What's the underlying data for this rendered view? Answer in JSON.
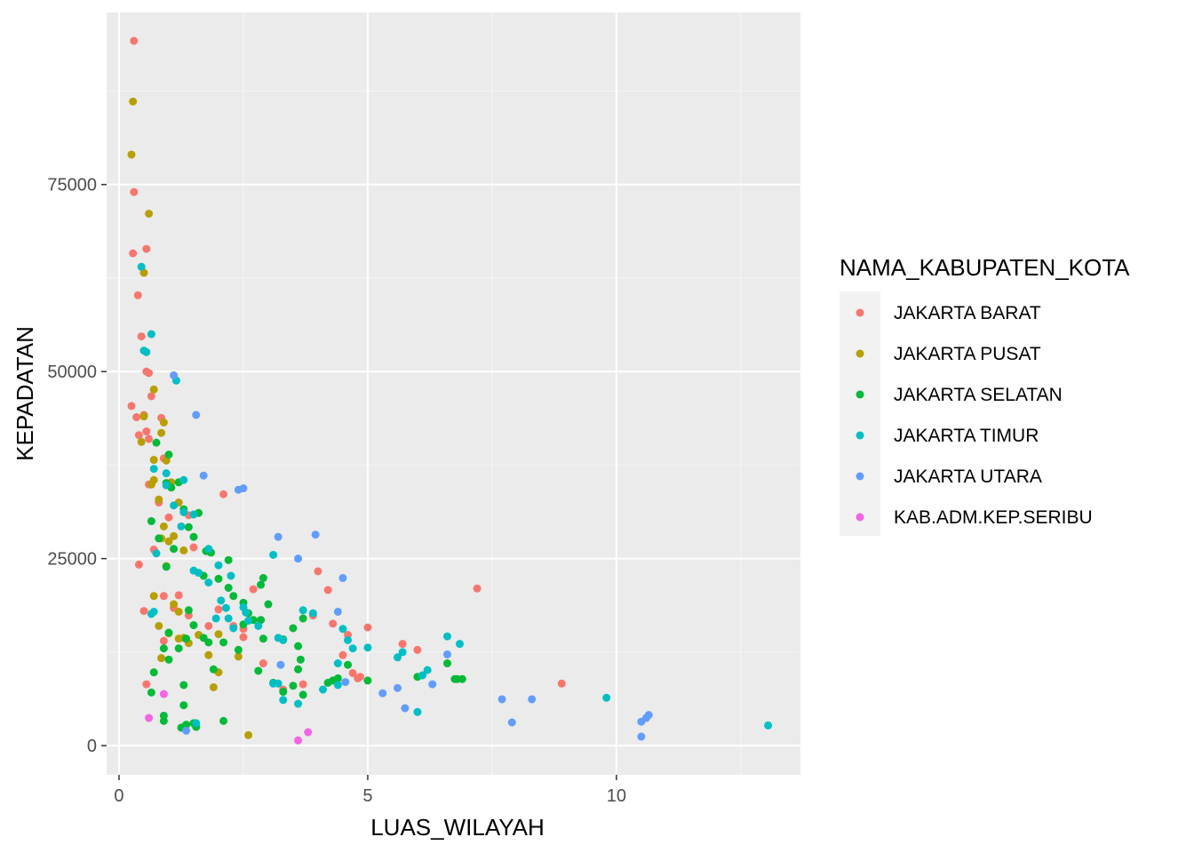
{
  "chart_data": {
    "type": "scatter",
    "xlabel": "LUAS_WILAYAH",
    "ylabel": "KEPADATAN",
    "xlim": [
      -0.25,
      13.7
    ],
    "ylim": [
      -3900,
      98000
    ],
    "x_ticks": [
      0,
      5,
      10
    ],
    "x_tick_labels": [
      "0",
      "5",
      "10"
    ],
    "y_ticks": [
      0,
      25000,
      50000,
      75000
    ],
    "y_tick_labels": [
      "0",
      "25000",
      "50000",
      "75000"
    ],
    "grid": true,
    "legend": {
      "title": "NAMA_KABUPATEN_KOTA",
      "position": "right"
    },
    "series": [
      {
        "name": "JAKARTA BARAT",
        "color": "#F8766D",
        "points": [
          [
            0.3,
            94200
          ],
          [
            0.3,
            74000
          ],
          [
            0.28,
            65800
          ],
          [
            0.55,
            66400
          ],
          [
            0.38,
            60200
          ],
          [
            0.45,
            54700
          ],
          [
            0.55,
            50000
          ],
          [
            0.6,
            49800
          ],
          [
            0.25,
            45400
          ],
          [
            0.35,
            43900
          ],
          [
            0.65,
            46700
          ],
          [
            0.5,
            44200
          ],
          [
            0.55,
            42000
          ],
          [
            0.4,
            41500
          ],
          [
            0.6,
            41000
          ],
          [
            0.85,
            43800
          ],
          [
            0.9,
            38400
          ],
          [
            0.6,
            34900
          ],
          [
            0.8,
            32500
          ],
          [
            1.0,
            30500
          ],
          [
            0.7,
            26200
          ],
          [
            0.4,
            24200
          ],
          [
            1.4,
            30800
          ],
          [
            2.1,
            33600
          ],
          [
            1.5,
            26500
          ],
          [
            1.2,
            20100
          ],
          [
            0.9,
            20000
          ],
          [
            1.1,
            18400
          ],
          [
            0.5,
            18000
          ],
          [
            0.9,
            14000
          ],
          [
            1.4,
            17400
          ],
          [
            1.8,
            16000
          ],
          [
            2.0,
            18200
          ],
          [
            2.3,
            16000
          ],
          [
            2.5,
            14500
          ],
          [
            2.7,
            20900
          ],
          [
            2.9,
            11000
          ],
          [
            3.3,
            7500
          ],
          [
            3.7,
            8200
          ],
          [
            3.9,
            17400
          ],
          [
            4.0,
            23300
          ],
          [
            4.2,
            20800
          ],
          [
            4.3,
            16300
          ],
          [
            4.6,
            14800
          ],
          [
            4.7,
            9700
          ],
          [
            4.8,
            9000
          ],
          [
            4.85,
            9200
          ],
          [
            5.0,
            15800
          ],
          [
            5.7,
            13600
          ],
          [
            6.0,
            12800
          ],
          [
            7.2,
            21000
          ],
          [
            8.9,
            8300
          ],
          [
            0.55,
            8200
          ],
          [
            2.5,
            15600
          ],
          [
            4.5,
            12100
          ]
        ]
      },
      {
        "name": "JAKARTA PUSAT",
        "color": "#B79F00",
        "points": [
          [
            0.28,
            86100
          ],
          [
            0.25,
            79000
          ],
          [
            0.6,
            71100
          ],
          [
            0.5,
            63200
          ],
          [
            0.7,
            47600
          ],
          [
            0.45,
            40600
          ],
          [
            0.9,
            43200
          ],
          [
            0.5,
            44000
          ],
          [
            0.85,
            41800
          ],
          [
            0.7,
            38200
          ],
          [
            0.95,
            38100
          ],
          [
            1.05,
            35200
          ],
          [
            0.7,
            35500
          ],
          [
            0.65,
            34900
          ],
          [
            0.8,
            32900
          ],
          [
            1.2,
            32500
          ],
          [
            1.0,
            27300
          ],
          [
            1.1,
            28000
          ],
          [
            0.85,
            27700
          ],
          [
            1.3,
            26100
          ],
          [
            0.95,
            24000
          ],
          [
            0.7,
            20000
          ],
          [
            1.2,
            17900
          ],
          [
            1.2,
            14300
          ],
          [
            1.4,
            13700
          ],
          [
            1.8,
            12100
          ],
          [
            2.0,
            9800
          ],
          [
            1.9,
            7800
          ],
          [
            2.0,
            14900
          ],
          [
            1.6,
            14800
          ],
          [
            2.4,
            11900
          ],
          [
            2.6,
            1400
          ],
          [
            0.85,
            11700
          ],
          [
            1.0,
            15000
          ],
          [
            0.8,
            16000
          ],
          [
            1.1,
            18900
          ],
          [
            1.3,
            14400
          ],
          [
            0.9,
            29300
          ]
        ]
      },
      {
        "name": "JAKARTA SELATAN",
        "color": "#00BA38",
        "points": [
          [
            0.75,
            40500
          ],
          [
            1.0,
            38900
          ],
          [
            0.95,
            35100
          ],
          [
            1.2,
            35200
          ],
          [
            1.05,
            34500
          ],
          [
            1.3,
            31600
          ],
          [
            1.6,
            31100
          ],
          [
            1.5,
            27900
          ],
          [
            0.8,
            27700
          ],
          [
            1.1,
            26300
          ],
          [
            1.75,
            26000
          ],
          [
            0.95,
            23900
          ],
          [
            0.65,
            30000
          ],
          [
            1.4,
            29200
          ],
          [
            1.85,
            25800
          ],
          [
            2.2,
            24800
          ],
          [
            2.0,
            22300
          ],
          [
            2.2,
            21100
          ],
          [
            2.3,
            20000
          ],
          [
            2.5,
            19100
          ],
          [
            2.6,
            17700
          ],
          [
            2.85,
            21500
          ],
          [
            3.0,
            18900
          ],
          [
            2.9,
            22400
          ],
          [
            2.7,
            16800
          ],
          [
            2.85,
            16800
          ],
          [
            2.9,
            14300
          ],
          [
            3.5,
            15700
          ],
          [
            3.7,
            17000
          ],
          [
            3.6,
            13300
          ],
          [
            3.65,
            11500
          ],
          [
            3.6,
            10200
          ],
          [
            3.5,
            8000
          ],
          [
            3.3,
            7200
          ],
          [
            3.7,
            6800
          ],
          [
            4.2,
            8400
          ],
          [
            4.3,
            8700
          ],
          [
            4.4,
            9000
          ],
          [
            4.6,
            10800
          ],
          [
            5.0,
            8700
          ],
          [
            6.0,
            9200
          ],
          [
            6.6,
            11000
          ],
          [
            6.8,
            8900
          ],
          [
            6.9,
            8900
          ],
          [
            6.75,
            8900
          ],
          [
            1.0,
            15100
          ],
          [
            1.2,
            13000
          ],
          [
            1.35,
            14300
          ],
          [
            1.7,
            14400
          ],
          [
            1.8,
            13800
          ],
          [
            2.1,
            13800
          ],
          [
            2.4,
            12800
          ],
          [
            2.5,
            16200
          ],
          [
            1.5,
            16100
          ],
          [
            0.9,
            13000
          ],
          [
            1.0,
            11500
          ],
          [
            0.7,
            9800
          ],
          [
            0.65,
            7100
          ],
          [
            1.3,
            8100
          ],
          [
            1.3,
            5400
          ],
          [
            0.9,
            3300
          ],
          [
            0.9,
            4000
          ],
          [
            1.35,
            2800
          ],
          [
            1.5,
            3000
          ],
          [
            1.55,
            2500
          ],
          [
            1.25,
            2400
          ],
          [
            2.1,
            3300
          ],
          [
            1.9,
            10200
          ],
          [
            2.8,
            10000
          ],
          [
            3.3,
            14200
          ],
          [
            3.1,
            8400
          ],
          [
            1.7,
            22700
          ],
          [
            1.4,
            18100
          ]
        ]
      },
      {
        "name": "JAKARTA TIMUR",
        "color": "#00BFC4",
        "points": [
          [
            0.45,
            64000
          ],
          [
            0.65,
            55000
          ],
          [
            0.5,
            52800
          ],
          [
            0.55,
            52600
          ],
          [
            1.15,
            48800
          ],
          [
            1.6,
            23100
          ],
          [
            1.5,
            23400
          ],
          [
            1.8,
            21800
          ],
          [
            1.95,
            17000
          ],
          [
            2.05,
            19400
          ],
          [
            2.25,
            22700
          ],
          [
            2.2,
            17000
          ],
          [
            2.3,
            15700
          ],
          [
            2.5,
            18500
          ],
          [
            2.55,
            17800
          ],
          [
            2.8,
            16000
          ],
          [
            3.1,
            25500
          ],
          [
            3.2,
            14400
          ],
          [
            3.3,
            14100
          ],
          [
            3.1,
            8300
          ],
          [
            3.2,
            8300
          ],
          [
            3.3,
            6100
          ],
          [
            3.6,
            5600
          ],
          [
            3.7,
            18100
          ],
          [
            3.9,
            17700
          ],
          [
            4.1,
            7500
          ],
          [
            4.4,
            11000
          ],
          [
            4.5,
            15600
          ],
          [
            4.6,
            14100
          ],
          [
            4.7,
            13000
          ],
          [
            4.4,
            8100
          ],
          [
            5.0,
            13100
          ],
          [
            5.6,
            11800
          ],
          [
            5.7,
            12500
          ],
          [
            6.0,
            4500
          ],
          [
            6.1,
            9400
          ],
          [
            6.2,
            10100
          ],
          [
            6.6,
            14600
          ],
          [
            6.85,
            13600
          ],
          [
            9.8,
            6400
          ],
          [
            13.05,
            2700
          ],
          [
            0.7,
            37000
          ],
          [
            0.95,
            36400
          ],
          [
            1.1,
            32100
          ],
          [
            1.25,
            29300
          ],
          [
            1.3,
            31200
          ],
          [
            1.5,
            30900
          ],
          [
            1.8,
            26300
          ],
          [
            2.0,
            24100
          ],
          [
            0.95,
            34800
          ],
          [
            0.7,
            17900
          ],
          [
            0.75,
            25700
          ],
          [
            1.3,
            35500
          ],
          [
            0.65,
            17600
          ],
          [
            1.55,
            3000
          ],
          [
            2.15,
            18400
          ],
          [
            2.6,
            16700
          ]
        ]
      },
      {
        "name": "JAKARTA UTARA",
        "color": "#619CFF",
        "points": [
          [
            1.1,
            49500
          ],
          [
            1.55,
            44200
          ],
          [
            1.7,
            36100
          ],
          [
            2.4,
            34200
          ],
          [
            2.5,
            34400
          ],
          [
            3.2,
            27900
          ],
          [
            3.95,
            28200
          ],
          [
            3.6,
            25000
          ],
          [
            3.25,
            10800
          ],
          [
            4.4,
            17900
          ],
          [
            4.5,
            22400
          ],
          [
            4.55,
            8500
          ],
          [
            5.3,
            7000
          ],
          [
            5.6,
            7700
          ],
          [
            5.75,
            5000
          ],
          [
            6.3,
            8200
          ],
          [
            6.6,
            12200
          ],
          [
            7.7,
            6200
          ],
          [
            7.9,
            3100
          ],
          [
            8.3,
            6200
          ],
          [
            10.5,
            1200
          ],
          [
            10.5,
            3200
          ],
          [
            10.6,
            3700
          ],
          [
            10.65,
            4100
          ],
          [
            1.35,
            2000
          ]
        ]
      },
      {
        "name": "KAB.ADM.KEP.SERIBU",
        "color": "#F564E3",
        "points": [
          [
            0.6,
            3700
          ],
          [
            0.9,
            6900
          ],
          [
            3.6,
            700
          ],
          [
            3.8,
            1800
          ]
        ]
      }
    ]
  }
}
